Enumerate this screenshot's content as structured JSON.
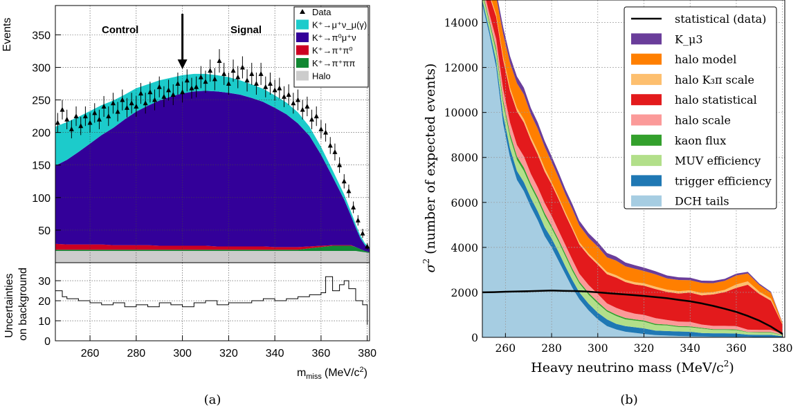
{
  "chart_data": [
    {
      "type": "area",
      "panel_caption": "(a)",
      "xlabel": "m",
      "xlabel_sub": "miss",
      "xlabel_unit": "(MeV/c",
      "xlabel_unit_sup": "2",
      "xlabel_close": ")",
      "ylabel_top": "Events",
      "ylabel_bottom_line1": "Uncertainties",
      "ylabel_bottom_line2": "on background",
      "annotations": {
        "control": "Control",
        "signal": "Signal",
        "arrow_x": 300
      },
      "xlim": [
        245,
        381
      ],
      "ylim_top": [
        0,
        395
      ],
      "ylim_bottom": [
        0,
        39
      ],
      "xticks": [
        260,
        280,
        300,
        320,
        340,
        360,
        380
      ],
      "yticks_top": [
        50,
        100,
        150,
        200,
        250,
        300,
        350
      ],
      "yticks_bottom": [
        0,
        10,
        20,
        30
      ],
      "grid": true,
      "legend_position": "top-right",
      "legend": [
        {
          "name": "Data",
          "color": "#000000",
          "marker": "triangle"
        },
        {
          "name": "K⁺→μ⁺ν_μ(γ)",
          "color": "#1ccbcb"
        },
        {
          "name": "K⁺→π⁰μ⁺ν",
          "color": "#330099"
        },
        {
          "name": "K⁺→π⁺π⁰",
          "color": "#cc0022"
        },
        {
          "name": "K⁺→π⁺ππ",
          "color": "#118833"
        },
        {
          "name": "Halo",
          "color": "#cccccc"
        }
      ],
      "stack_x": [
        245,
        250,
        255,
        260,
        265,
        270,
        275,
        280,
        285,
        290,
        295,
        300,
        305,
        310,
        315,
        320,
        325,
        330,
        335,
        340,
        345,
        350,
        355,
        360,
        365,
        370,
        373,
        375,
        377,
        379,
        381
      ],
      "series": [
        {
          "name": "Halo",
          "values": [
            18,
            18,
            18,
            18,
            18,
            18,
            18,
            18,
            18,
            18,
            18,
            18,
            18,
            18,
            18,
            18,
            18,
            18,
            18,
            18,
            18,
            18,
            18,
            18,
            18,
            18,
            18,
            18,
            17,
            16,
            15
          ]
        },
        {
          "name": "K⁺→π⁺ππ",
          "values": [
            2,
            2,
            2,
            2,
            2,
            2,
            2,
            2,
            2,
            2,
            2,
            2,
            2,
            2,
            2,
            2,
            2,
            2,
            2,
            2,
            2,
            2,
            4,
            6,
            8,
            8,
            8,
            6,
            4,
            2,
            1
          ]
        },
        {
          "name": "K⁺→π⁺π⁰",
          "values": [
            9,
            8,
            8,
            8,
            8,
            7,
            7,
            7,
            7,
            6,
            6,
            6,
            6,
            6,
            5,
            5,
            5,
            5,
            5,
            4,
            4,
            4,
            3,
            2,
            1,
            1,
            1,
            0,
            0,
            0,
            0
          ]
        },
        {
          "name": "K⁺→π⁰μ⁺ν",
          "values": [
            120,
            130,
            142,
            155,
            168,
            180,
            193,
            205,
            214,
            223,
            229,
            234,
            237,
            238,
            238,
            236,
            233,
            228,
            222,
            214,
            204,
            190,
            170,
            140,
            105,
            70,
            45,
            30,
            17,
            9,
            5
          ]
        },
        {
          "name": "K⁺→μ⁺ν_μ(γ)",
          "values": [
            60,
            58,
            54,
            50,
            46,
            42,
            38,
            36,
            33,
            31,
            29,
            28,
            27,
            26,
            25,
            24,
            22,
            21,
            20,
            19,
            18,
            17,
            14,
            12,
            10,
            8,
            6,
            5,
            4,
            3,
            2
          ]
        }
      ],
      "data_points": {
        "x": [
          246,
          248,
          250,
          252,
          254,
          256,
          258,
          260,
          262,
          264,
          266,
          268,
          270,
          272,
          274,
          276,
          278,
          280,
          282,
          284,
          286,
          288,
          290,
          292,
          294,
          296,
          298,
          300,
          302,
          304,
          306,
          308,
          310,
          312,
          314,
          316,
          318,
          320,
          322,
          324,
          326,
          328,
          330,
          332,
          334,
          336,
          338,
          340,
          342,
          344,
          346,
          348,
          350,
          352,
          354,
          356,
          358,
          360,
          362,
          364,
          366,
          368,
          370,
          372,
          374,
          376,
          378,
          380
        ],
        "y": [
          215,
          235,
          220,
          205,
          225,
          210,
          225,
          215,
          230,
          220,
          240,
          225,
          245,
          232,
          250,
          238,
          245,
          240,
          260,
          245,
          262,
          250,
          270,
          255,
          265,
          258,
          275,
          262,
          280,
          268,
          270,
          285,
          278,
          295,
          282,
          310,
          290,
          275,
          295,
          285,
          300,
          280,
          290,
          275,
          290,
          270,
          275,
          265,
          268,
          255,
          258,
          245,
          250,
          235,
          240,
          220,
          225,
          205,
          200,
          180,
          170,
          150,
          125,
          110,
          85,
          65,
          45,
          25
        ],
        "err": [
          15,
          15,
          15,
          14,
          15,
          14,
          15,
          15,
          15,
          15,
          16,
          15,
          16,
          15,
          16,
          15,
          16,
          16,
          16,
          16,
          16,
          16,
          16,
          16,
          16,
          16,
          17,
          16,
          17,
          16,
          16,
          17,
          17,
          17,
          17,
          18,
          17,
          17,
          17,
          17,
          17,
          17,
          17,
          17,
          17,
          16,
          17,
          16,
          16,
          16,
          16,
          16,
          16,
          15,
          15,
          15,
          15,
          14,
          14,
          13,
          13,
          12,
          11,
          10,
          9,
          8,
          7,
          5
        ]
      },
      "uncertainty_x": [
        245,
        248,
        250,
        255,
        260,
        265,
        270,
        275,
        280,
        285,
        290,
        295,
        300,
        305,
        310,
        315,
        320,
        325,
        330,
        335,
        340,
        345,
        350,
        355,
        360,
        362,
        365,
        368,
        370,
        372,
        375,
        378,
        380
      ],
      "uncertainty_y": [
        25,
        22,
        21,
        20,
        19,
        18,
        19,
        17,
        18,
        17,
        19,
        18,
        17,
        19,
        20,
        18,
        19,
        19,
        20,
        21,
        20,
        21,
        22,
        23,
        24,
        32,
        25,
        28,
        30,
        26,
        20,
        18,
        8
      ]
    },
    {
      "type": "area",
      "panel_caption": "(b)",
      "xlabel": "Heavy neutrino mass (MeV/c",
      "xlabel_sup": "2",
      "xlabel_close": ")",
      "ylabel": "σ",
      "ylabel_sup": "2",
      "ylabel_rest": "(number of expected events)",
      "xlim": [
        250,
        381
      ],
      "ylim": [
        0,
        15000
      ],
      "xticks": [
        260,
        280,
        300,
        320,
        340,
        360,
        380
      ],
      "yticks": [
        0,
        2000,
        4000,
        6000,
        8000,
        10000,
        12000,
        14000
      ],
      "grid": true,
      "legend_position": "top-right",
      "x": [
        250,
        253,
        256,
        259,
        262,
        265,
        268,
        271,
        274,
        277,
        280,
        283,
        286,
        289,
        292,
        296,
        300,
        304,
        308,
        312,
        316,
        320,
        325,
        330,
        335,
        340,
        345,
        350,
        355,
        360,
        365,
        370,
        375,
        380
      ],
      "series": [
        {
          "name": "DCH tails",
          "color": "#a6cde2",
          "values": [
            14800,
            13500,
            12000,
            9500,
            8000,
            7000,
            6500,
            5800,
            5200,
            4500,
            4000,
            3400,
            2800,
            2200,
            1700,
            1200,
            800,
            500,
            350,
            250,
            200,
            150,
            100,
            80,
            60,
            50,
            40,
            30,
            30,
            20,
            20,
            10,
            10,
            0
          ]
        },
        {
          "name": "trigger efficiency",
          "color": "#1f78b4",
          "values": [
            200,
            200,
            300,
            400,
            400,
            400,
            400,
            400,
            400,
            400,
            400,
            400,
            350,
            350,
            300,
            300,
            300,
            300,
            250,
            250,
            250,
            250,
            200,
            200,
            200,
            200,
            150,
            150,
            150,
            150,
            100,
            100,
            100,
            50
          ]
        },
        {
          "name": "MUV efficiency",
          "color": "#b2df8a",
          "values": [
            300,
            300,
            400,
            500,
            500,
            500,
            500,
            500,
            500,
            500,
            450,
            450,
            450,
            400,
            400,
            400,
            400,
            350,
            350,
            300,
            300,
            300,
            250,
            250,
            200,
            200,
            200,
            150,
            150,
            150,
            100,
            100,
            100,
            50
          ]
        },
        {
          "name": "kaon flux",
          "color": "#33a02c",
          "values": [
            100,
            100,
            150,
            150,
            150,
            150,
            150,
            120,
            120,
            120,
            100,
            100,
            100,
            100,
            80,
            80,
            80,
            60,
            60,
            60,
            50,
            50,
            50,
            40,
            40,
            40,
            30,
            30,
            30,
            30,
            20,
            20,
            20,
            10
          ]
        },
        {
          "name": "halo scale",
          "color": "#fb9a99",
          "values": [
            300,
            300,
            400,
            500,
            500,
            500,
            500,
            450,
            450,
            450,
            450,
            400,
            400,
            400,
            350,
            350,
            350,
            300,
            300,
            300,
            250,
            250,
            250,
            200,
            200,
            200,
            150,
            150,
            150,
            150,
            100,
            100,
            100,
            50
          ]
        },
        {
          "name": "halo statistical",
          "color": "#e31a1c",
          "values": [
            800,
            800,
            1000,
            1300,
            1400,
            1500,
            1500,
            1500,
            1450,
            1400,
            1400,
            1400,
            1350,
            1350,
            1300,
            1300,
            1300,
            1300,
            1350,
            1300,
            1300,
            1300,
            1300,
            1250,
            1250,
            1300,
            1300,
            1400,
            1500,
            1700,
            2000,
            1600,
            1300,
            400
          ]
        },
        {
          "name": "halo K₃π scale",
          "color": "#fdbf6f",
          "values": [
            100,
            100,
            100,
            150,
            150,
            150,
            150,
            150,
            150,
            150,
            100,
            100,
            100,
            100,
            100,
            100,
            100,
            100,
            100,
            100,
            100,
            100,
            100,
            100,
            100,
            100,
            100,
            100,
            100,
            150,
            150,
            100,
            100,
            30
          ]
        },
        {
          "name": "halo model",
          "color": "#ff7f00",
          "values": [
            600,
            600,
            800,
            1000,
            1100,
            1100,
            1100,
            1000,
            1000,
            950,
            900,
            850,
            800,
            800,
            750,
            700,
            700,
            650,
            650,
            600,
            600,
            550,
            550,
            500,
            500,
            450,
            450,
            400,
            400,
            400,
            350,
            300,
            250,
            50
          ]
        },
        {
          "name": "K_μ3",
          "color": "#6a3d9a",
          "values": [
            200,
            200,
            250,
            300,
            300,
            300,
            300,
            280,
            280,
            260,
            250,
            240,
            230,
            220,
            210,
            200,
            200,
            190,
            180,
            170,
            160,
            150,
            140,
            130,
            120,
            110,
            100,
            100,
            90,
            80,
            70,
            60,
            50,
            20
          ]
        }
      ],
      "statistical_line": {
        "name": "statistical (data)",
        "color": "#000000",
        "x": [
          250,
          255,
          260,
          265,
          270,
          275,
          280,
          285,
          290,
          295,
          300,
          305,
          310,
          315,
          320,
          325,
          330,
          335,
          340,
          345,
          350,
          355,
          360,
          365,
          370,
          375,
          380
        ],
        "values": [
          2000,
          2010,
          2030,
          2040,
          2050,
          2070,
          2080,
          2070,
          2060,
          2040,
          2000,
          1960,
          1920,
          1880,
          1840,
          1790,
          1740,
          1670,
          1600,
          1510,
          1400,
          1270,
          1130,
          950,
          740,
          480,
          150
        ]
      },
      "legend_order": [
        "statistical (data)",
        "K_μ3",
        "halo model",
        "halo K₃π scale",
        "halo statistical",
        "halo scale",
        "kaon flux",
        "MUV efficiency",
        "trigger efficiency",
        "DCH tails"
      ]
    }
  ]
}
